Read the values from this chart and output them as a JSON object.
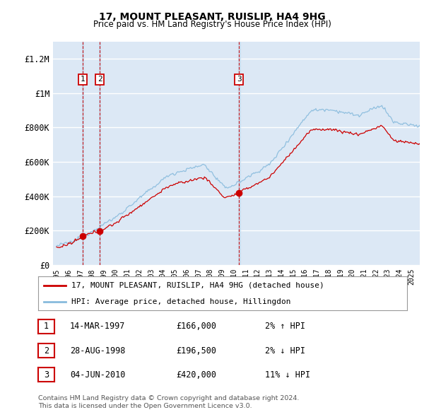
{
  "title": "17, MOUNT PLEASANT, RUISLIP, HA4 9HG",
  "subtitle": "Price paid vs. HM Land Registry's House Price Index (HPI)",
  "ylim": [
    0,
    1300000
  ],
  "yticks": [
    0,
    200000,
    400000,
    600000,
    800000,
    1000000,
    1200000
  ],
  "ytick_labels": [
    "£0",
    "£200K",
    "£400K",
    "£600K",
    "£800K",
    "£1M",
    "£1.2M"
  ],
  "sales": [
    {
      "year": 1997.21,
      "price": 166000,
      "label": "1"
    },
    {
      "year": 1998.65,
      "price": 196500,
      "label": "2"
    },
    {
      "year": 2010.42,
      "price": 420000,
      "label": "3"
    }
  ],
  "legend_entries": [
    {
      "color": "#cc0000",
      "label": "17, MOUNT PLEASANT, RUISLIP, HA4 9HG (detached house)"
    },
    {
      "color": "#88bbdd",
      "label": "HPI: Average price, detached house, Hillingdon"
    }
  ],
  "table_rows": [
    {
      "num": "1",
      "date": "14-MAR-1997",
      "price": "£166,000",
      "change": "2% ↑ HPI"
    },
    {
      "num": "2",
      "date": "28-AUG-1998",
      "price": "£196,500",
      "change": "2% ↓ HPI"
    },
    {
      "num": "3",
      "date": "04-JUN-2010",
      "price": "£420,000",
      "change": "11% ↓ HPI"
    }
  ],
  "footer": [
    "Contains HM Land Registry data © Crown copyright and database right 2024.",
    "This data is licensed under the Open Government Licence v3.0."
  ],
  "plot_bg": "#dce8f5",
  "grid_color": "#ffffff",
  "line_color_red": "#cc0000",
  "line_color_blue": "#88bbdd",
  "dot_color": "#cc0000",
  "vline_color": "#cc0000",
  "shade_color": "#c8ddf0"
}
